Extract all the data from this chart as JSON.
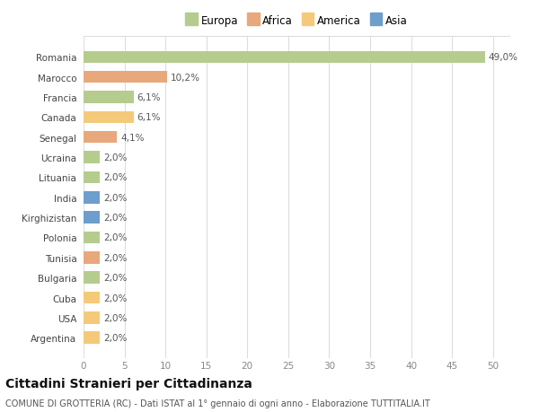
{
  "countries": [
    "Romania",
    "Marocco",
    "Francia",
    "Canada",
    "Senegal",
    "Ucraina",
    "Lituania",
    "India",
    "Kirghizistan",
    "Polonia",
    "Tunisia",
    "Bulgaria",
    "Cuba",
    "USA",
    "Argentina"
  ],
  "values": [
    49.0,
    10.2,
    6.1,
    6.1,
    4.1,
    2.0,
    2.0,
    2.0,
    2.0,
    2.0,
    2.0,
    2.0,
    2.0,
    2.0,
    2.0
  ],
  "labels": [
    "49,0%",
    "10,2%",
    "6,1%",
    "6,1%",
    "4,1%",
    "2,0%",
    "2,0%",
    "2,0%",
    "2,0%",
    "2,0%",
    "2,0%",
    "2,0%",
    "2,0%",
    "2,0%",
    "2,0%"
  ],
  "colors": [
    "#b5cc8e",
    "#e8a87c",
    "#b5cc8e",
    "#f5c97a",
    "#e8a87c",
    "#b5cc8e",
    "#b5cc8e",
    "#6d9ecc",
    "#6d9ecc",
    "#b5cc8e",
    "#e8a87c",
    "#b5cc8e",
    "#f5c97a",
    "#f5c97a",
    "#f5c97a"
  ],
  "legend_labels": [
    "Europa",
    "Africa",
    "America",
    "Asia"
  ],
  "legend_colors": [
    "#b5cc8e",
    "#e8a87c",
    "#f5c97a",
    "#6d9ecc"
  ],
  "xlim_max": 52,
  "xticks": [
    0,
    5,
    10,
    15,
    20,
    25,
    30,
    35,
    40,
    45,
    50
  ],
  "title": "Cittadini Stranieri per Cittadinanza",
  "subtitle": "COMUNE DI GROTTERIA (RC) - Dati ISTAT al 1° gennaio di ogni anno - Elaborazione TUTTITALIA.IT",
  "background_color": "#ffffff",
  "grid_color": "#dddddd",
  "bar_height": 0.6,
  "label_fontsize": 7.5,
  "tick_fontsize": 7.5,
  "legend_fontsize": 8.5,
  "title_fontsize": 10,
  "subtitle_fontsize": 7
}
